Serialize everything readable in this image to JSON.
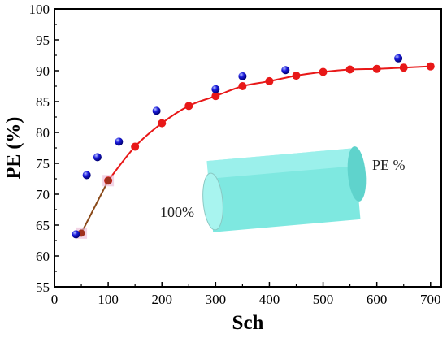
{
  "chart_data": {
    "type": "scatter",
    "title": "",
    "xlabel": "Sch",
    "ylabel": "PE (%)",
    "xlim": [
      0,
      720
    ],
    "ylim": [
      55,
      100
    ],
    "xticks": [
      0,
      100,
      200,
      300,
      400,
      500,
      600,
      700
    ],
    "yticks": [
      55,
      60,
      65,
      70,
      75,
      80,
      85,
      90,
      95,
      100
    ],
    "grid": false,
    "series": [
      {
        "marker": "sphere",
        "color": "#1a1adc",
        "x": [
          40,
          60,
          80,
          120,
          190,
          300,
          350,
          430,
          640
        ],
        "y": [
          63.5,
          73.1,
          76.0,
          78.5,
          83.5,
          87.0,
          89.1,
          90.1,
          92.0
        ]
      },
      {
        "marker": "circle",
        "color": "#e81818",
        "line_color": "#e81818",
        "x": [
          100,
          150,
          200,
          250,
          300,
          350,
          400,
          450,
          500,
          550,
          600,
          650,
          700
        ],
        "y": [
          72.2,
          77.7,
          81.5,
          84.3,
          85.9,
          87.5,
          88.3,
          89.2,
          89.8,
          90.2,
          90.3,
          90.5,
          90.7
        ]
      },
      {
        "marker": "circle",
        "color": "#a0301c",
        "line_color": "#8a4a1a",
        "x": [
          50,
          100
        ],
        "y": [
          63.7,
          72.2
        ]
      }
    ],
    "annotations": {
      "left": "100%",
      "right": "PE %"
    },
    "inset_colors": {
      "cylinder_fill": "#7ee8e0",
      "cylinder_top": "#a8f4ef",
      "cylinder_shade": "#5fd3cc"
    }
  }
}
